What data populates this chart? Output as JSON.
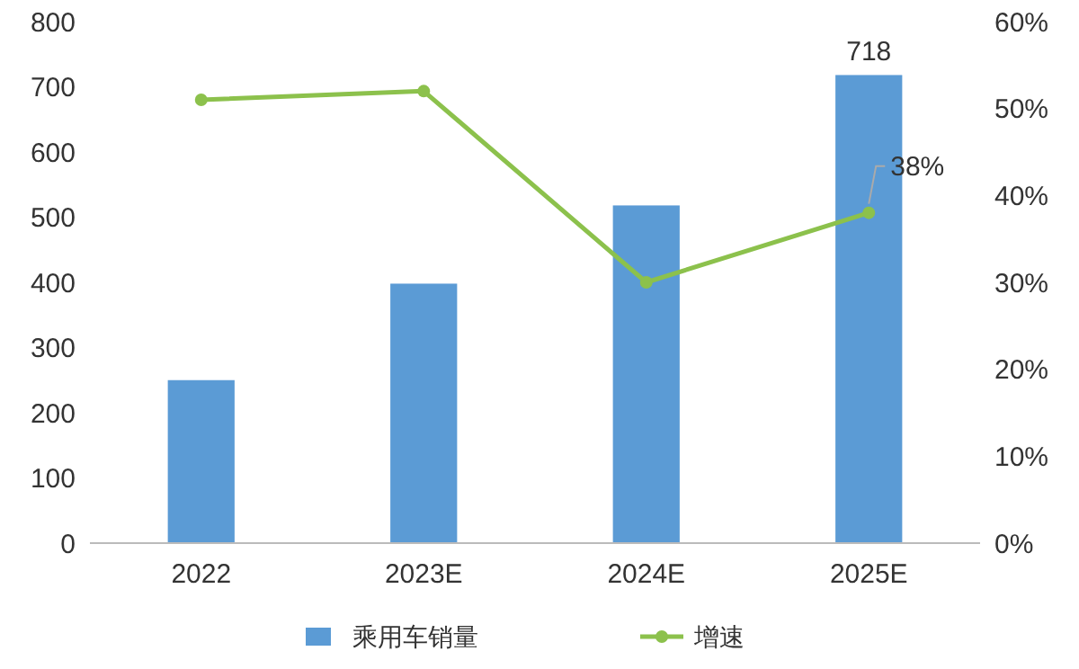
{
  "chart_data": {
    "type": "bar",
    "categories": [
      "2022",
      "2023E",
      "2024E",
      "2025E"
    ],
    "series": [
      {
        "name": "乘用车销量",
        "color": "#5b9bd5",
        "values": [
          250,
          398,
          518,
          718
        ],
        "value_labels": [
          null,
          null,
          null,
          "718"
        ]
      },
      {
        "name": "增速",
        "type": "line",
        "axis": "y2",
        "color": "#8cc14c",
        "values": [
          51,
          52,
          30,
          38
        ],
        "value_labels": [
          null,
          null,
          null,
          "38%"
        ]
      }
    ],
    "ylim": [
      0,
      800
    ],
    "yticks": [
      0,
      100,
      200,
      300,
      400,
      500,
      600,
      700,
      800
    ],
    "y2lim": [
      0,
      60
    ],
    "y2ticks": [
      {
        "value": 0,
        "label": "0%"
      },
      {
        "value": 10,
        "label": "10%"
      },
      {
        "value": 20,
        "label": "20%"
      },
      {
        "value": 30,
        "label": "30%"
      },
      {
        "value": 40,
        "label": "40%"
      },
      {
        "value": 50,
        "label": "50%"
      },
      {
        "value": 60,
        "label": "60%"
      }
    ],
    "marker": "circle",
    "grid": false,
    "legend": "bottom"
  }
}
